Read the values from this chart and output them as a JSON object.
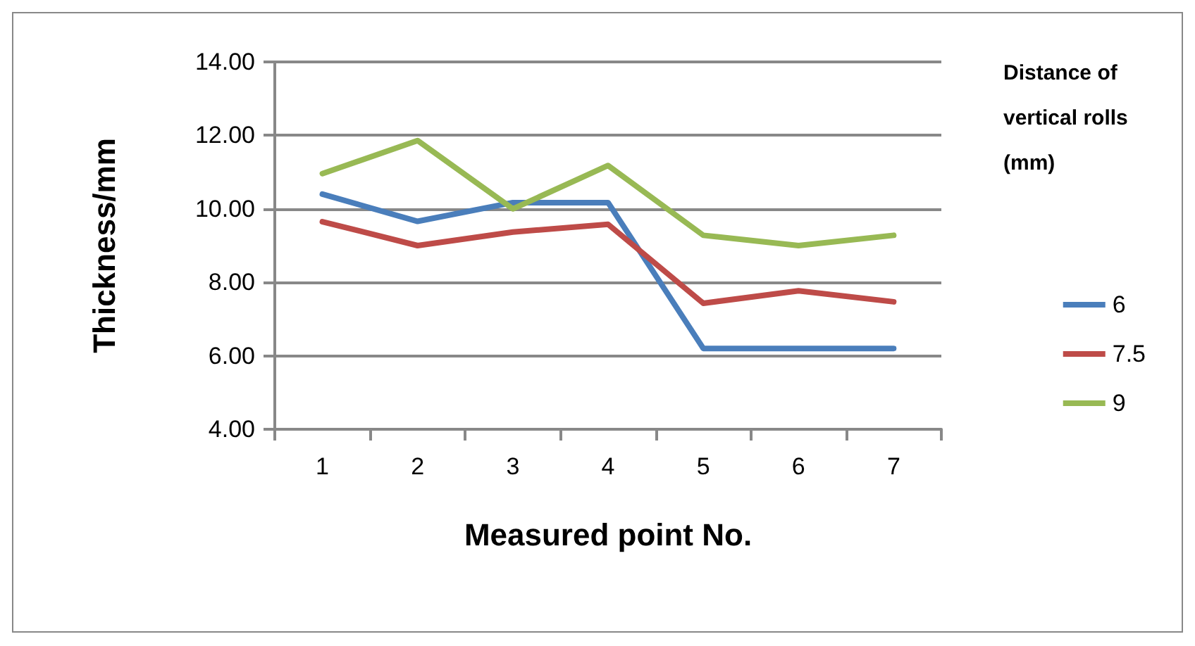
{
  "chart_data": {
    "type": "line",
    "xlabel": "Measured point No.",
    "ylabel": "Thickness/mm",
    "legend_title": "Distance of vertical rolls (mm)",
    "categories": [
      "1",
      "2",
      "3",
      "4",
      "5",
      "6",
      "7"
    ],
    "series": [
      {
        "name": "6",
        "color": "#4a7ebb",
        "values": [
          10.4,
          9.66,
          10.17,
          10.17,
          6.2,
          6.2,
          6.2
        ]
      },
      {
        "name": "7.5",
        "color": "#be4b48",
        "values": [
          9.65,
          9.0,
          9.37,
          9.58,
          7.43,
          7.77,
          7.47
        ]
      },
      {
        "name": "9",
        "color": "#98b954",
        "values": [
          10.96,
          11.86,
          10.0,
          11.18,
          9.28,
          9.0,
          9.28
        ]
      }
    ],
    "ylim": [
      4,
      14
    ],
    "yticks": [
      {
        "value": 4,
        "label": "4.00"
      },
      {
        "value": 6,
        "label": "6.00"
      },
      {
        "value": 8,
        "label": "8.00"
      },
      {
        "value": 10,
        "label": "10.00"
      },
      {
        "value": 12,
        "label": "12.00"
      },
      {
        "value": 14,
        "label": "14.00"
      }
    ],
    "grid": "y",
    "legend": "right",
    "marker": "none",
    "line_style": "solid"
  }
}
